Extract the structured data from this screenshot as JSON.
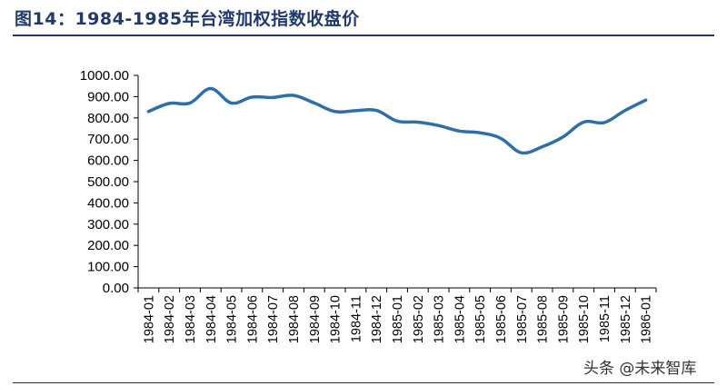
{
  "figure": {
    "title": "图14：1984-1985年台湾加权指数收盘价"
  },
  "watermark": "头条 @未来智库",
  "colors": {
    "line": "#2e6fa7",
    "title": "#1f3a6b",
    "axis": "#000000"
  },
  "chart_data": {
    "type": "line",
    "title": "",
    "xlabel": "",
    "ylabel": "",
    "categories": [
      "1984-01",
      "1984-02",
      "1984-03",
      "1984-04",
      "1984-05",
      "1984-06",
      "1984-07",
      "1984-08",
      "1984-09",
      "1984-10",
      "1984-11",
      "1984-12",
      "1985-01",
      "1985-02",
      "1985-03",
      "1985-04",
      "1985-05",
      "1985-06",
      "1985-07",
      "1985-08",
      "1985-09",
      "1985-10",
      "1985-11",
      "1985-12",
      "1986-01"
    ],
    "series": [
      {
        "values": [
          830,
          868,
          870,
          938,
          870,
          898,
          896,
          906,
          870,
          830,
          834,
          835,
          785,
          780,
          764,
          738,
          730,
          704,
          636,
          664,
          710,
          780,
          778,
          835,
          884
        ]
      }
    ],
    "yticks": [
      "1000.00",
      "900.00",
      "800.00",
      "700.00",
      "600.00",
      "500.00",
      "400.00",
      "300.00",
      "200.00",
      "100.00",
      "0.00"
    ],
    "ylim": [
      0,
      1000
    ],
    "grid": false,
    "legend": "none"
  }
}
